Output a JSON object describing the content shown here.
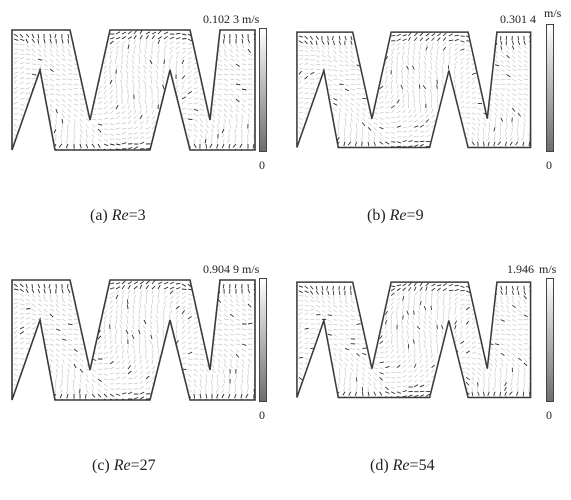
{
  "unit": "m/s",
  "panels": [
    {
      "id": "a",
      "max": "0.102 3",
      "min": "0",
      "caption_prefix": "(a)",
      "caption_var": "Re",
      "caption_eq": "=",
      "caption_val": "3"
    },
    {
      "id": "b",
      "max": "0.301 4",
      "min": "0",
      "caption_prefix": "(b)",
      "caption_var": "Re",
      "caption_eq": "=",
      "caption_val": "9"
    },
    {
      "id": "c",
      "max": "0.904 9",
      "min": "0",
      "caption_prefix": "(c)",
      "caption_var": "Re",
      "caption_eq": "=",
      "caption_val": "27"
    },
    {
      "id": "d",
      "max": "1.946",
      "min": "0",
      "caption_prefix": "(d)",
      "caption_var": "Re",
      "caption_eq": "=",
      "caption_val": "54"
    }
  ],
  "colors": {
    "wall": "#3a3a3a",
    "vector_light": "#c8c8c8",
    "vector_dark": "#2a2a2a"
  }
}
